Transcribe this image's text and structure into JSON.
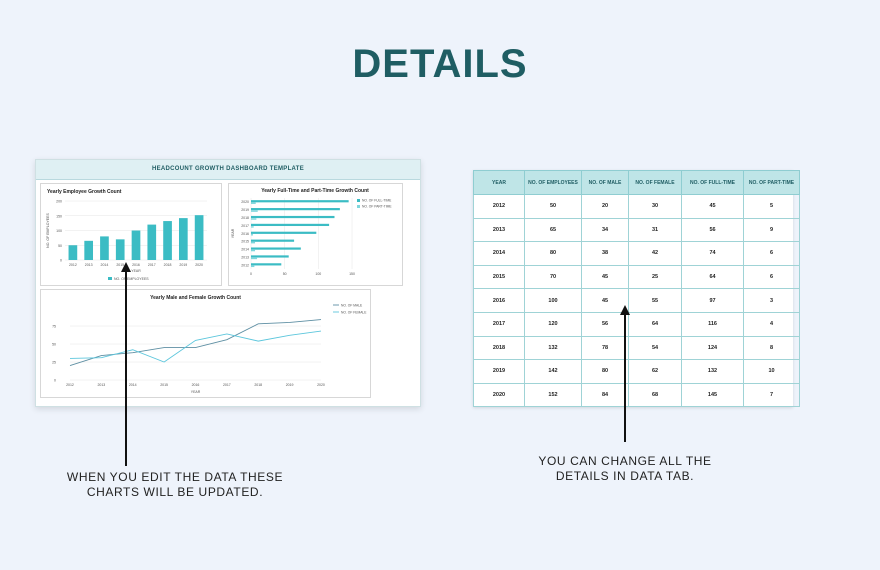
{
  "page": {
    "title": "DETAILS"
  },
  "dashboard": {
    "title": "HEADCOUNT GROWTH DASHBOARD TEMPLATE"
  },
  "chart_data": [
    {
      "type": "bar",
      "title": "Yearly Employee Growth Count",
      "xlabel": "YEAR",
      "ylabel": "NO. OF EMPLOYEES",
      "categories": [
        "2012",
        "2013",
        "2014",
        "2015",
        "2016",
        "2017",
        "2018",
        "2019",
        "2020"
      ],
      "series": [
        {
          "name": "NO. OF EMPLOYEES",
          "values": [
            50,
            65,
            80,
            70,
            100,
            120,
            132,
            142,
            152
          ]
        }
      ],
      "ylim": [
        0,
        200
      ],
      "yticks": [
        "0",
        "50",
        "100",
        "150",
        "200"
      ],
      "color": "#3bbcc4",
      "legend": "bottom"
    },
    {
      "type": "bar",
      "orientation": "horizontal",
      "title": "Yearly Full-Time and Part-Time Growth Count",
      "ylabel": "YEAR",
      "categories": [
        "2012",
        "2013",
        "2014",
        "2015",
        "2016",
        "2017",
        "2018",
        "2019",
        "2020"
      ],
      "series": [
        {
          "name": "NO. OF FULL-TIME",
          "values": [
            45,
            56,
            74,
            64,
            97,
            116,
            124,
            132,
            145
          ]
        },
        {
          "name": "NO. OF PART-TIME",
          "values": [
            5,
            9,
            6,
            6,
            3,
            4,
            8,
            10,
            7
          ]
        }
      ],
      "xlim": [
        0,
        150
      ],
      "xticks": [
        "0",
        "50",
        "100",
        "150"
      ],
      "colors": [
        "#3bbcc4",
        "#7fd6dc"
      ],
      "legend": "top-right"
    },
    {
      "type": "line",
      "title": "Yearly Male and Female Growth Count",
      "xlabel": "YEAR",
      "categories": [
        "2012",
        "2013",
        "2014",
        "2015",
        "2016",
        "2017",
        "2018",
        "2019",
        "2020"
      ],
      "series": [
        {
          "name": "NO. OF MALE",
          "values": [
            20,
            34,
            38,
            45,
            45,
            56,
            78,
            80,
            84
          ]
        },
        {
          "name": "NO. OF FEMALE",
          "values": [
            30,
            31,
            42,
            25,
            55,
            64,
            54,
            62,
            68
          ]
        }
      ],
      "ylim": [
        0,
        100
      ],
      "yticks": [
        "0",
        "25",
        "50",
        "75"
      ],
      "colors": [
        "#5e8fa3",
        "#5cc6dc"
      ],
      "legend": "top-right"
    }
  ],
  "table": {
    "headers": [
      "YEAR",
      "NO. OF EMPLOYEES",
      "NO. OF MALE",
      "NO. OF FEMALE",
      "NO. OF FULL-TIME",
      "NO. OF PART-TIME"
    ],
    "rows": [
      [
        "2012",
        "50",
        "20",
        "30",
        "45",
        "5"
      ],
      [
        "2013",
        "65",
        "34",
        "31",
        "56",
        "9"
      ],
      [
        "2014",
        "80",
        "38",
        "42",
        "74",
        "6"
      ],
      [
        "2015",
        "70",
        "45",
        "25",
        "64",
        "6"
      ],
      [
        "2016",
        "100",
        "45",
        "55",
        "97",
        "3"
      ],
      [
        "2017",
        "120",
        "56",
        "64",
        "116",
        "4"
      ],
      [
        "2018",
        "132",
        "78",
        "54",
        "124",
        "8"
      ],
      [
        "2019",
        "142",
        "80",
        "62",
        "132",
        "10"
      ],
      [
        "2020",
        "152",
        "84",
        "68",
        "145",
        "7"
      ]
    ]
  },
  "notes": {
    "left": "WHEN YOU EDIT THE DATA THESE CHARTS WILL BE UPDATED.",
    "right": "YOU CAN CHANGE ALL THE DETAILS IN DATA TAB."
  }
}
